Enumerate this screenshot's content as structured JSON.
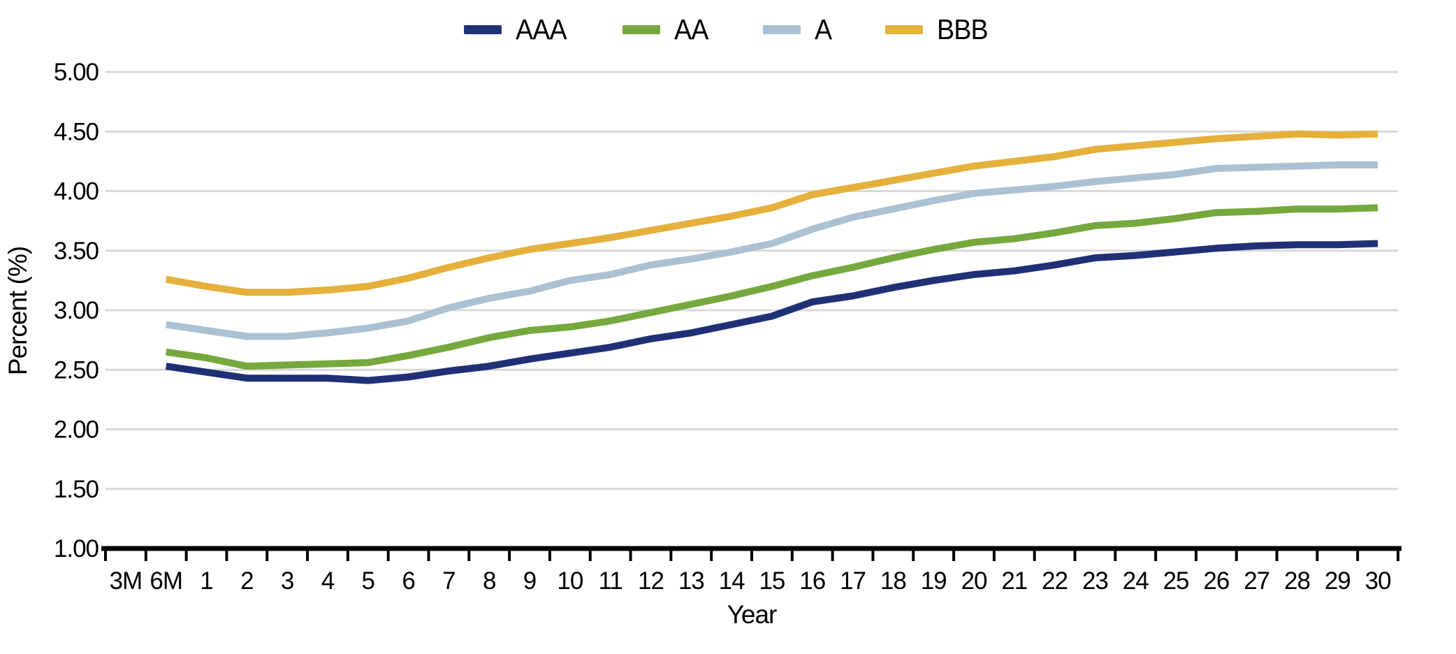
{
  "chart_data": {
    "type": "line",
    "title": "",
    "xlabel": "Year",
    "ylabel": "Percent (%)",
    "ylim": [
      1.0,
      5.0
    ],
    "ytick_labels": [
      "5.00",
      "4.50",
      "4.00",
      "3.50",
      "3.00",
      "2.50",
      "2.00",
      "1.50",
      "1.00"
    ],
    "grid": "horizontal",
    "legend_position": "top-center",
    "categories": [
      "3M",
      "6M",
      "1",
      "2",
      "3",
      "4",
      "5",
      "6",
      "7",
      "8",
      "9",
      "10",
      "11",
      "12",
      "13",
      "14",
      "15",
      "16",
      "17",
      "18",
      "19",
      "20",
      "21",
      "22",
      "23",
      "24",
      "25",
      "26",
      "27",
      "28",
      "29",
      "30"
    ],
    "series": [
      {
        "name": "AAA",
        "color": "#203077",
        "values": [
          null,
          2.53,
          2.48,
          2.43,
          2.43,
          2.43,
          2.41,
          2.44,
          2.49,
          2.53,
          2.59,
          2.64,
          2.69,
          2.76,
          2.81,
          2.88,
          2.95,
          3.07,
          3.12,
          3.19,
          3.25,
          3.3,
          3.33,
          3.38,
          3.44,
          3.46,
          3.49,
          3.52,
          3.54,
          3.55,
          3.55,
          3.56
        ]
      },
      {
        "name": "AA",
        "color": "#76a83e",
        "values": [
          null,
          2.65,
          2.6,
          2.53,
          2.54,
          2.55,
          2.56,
          2.62,
          2.69,
          2.77,
          2.83,
          2.86,
          2.91,
          2.98,
          3.05,
          3.12,
          3.2,
          3.29,
          3.36,
          3.44,
          3.51,
          3.57,
          3.6,
          3.65,
          3.71,
          3.73,
          3.77,
          3.82,
          3.83,
          3.85,
          3.85,
          3.86
        ]
      },
      {
        "name": "A",
        "color": "#abc1d2",
        "values": [
          null,
          2.88,
          2.83,
          2.78,
          2.78,
          2.81,
          2.85,
          2.91,
          3.02,
          3.1,
          3.16,
          3.25,
          3.3,
          3.38,
          3.43,
          3.49,
          3.56,
          3.68,
          3.78,
          3.85,
          3.92,
          3.98,
          4.01,
          4.04,
          4.08,
          4.11,
          4.14,
          4.19,
          4.2,
          4.21,
          4.22,
          4.22
        ]
      },
      {
        "name": "BBB",
        "color": "#e5b13c",
        "values": [
          null,
          3.26,
          3.2,
          3.15,
          3.15,
          3.17,
          3.2,
          3.27,
          3.36,
          3.44,
          3.51,
          3.56,
          3.61,
          3.67,
          3.73,
          3.79,
          3.86,
          3.97,
          4.03,
          4.09,
          4.15,
          4.21,
          4.25,
          4.29,
          4.35,
          4.38,
          4.41,
          4.44,
          4.46,
          4.48,
          4.47,
          4.48
        ]
      }
    ],
    "colors": {
      "gridline": "#d9d9d9",
      "axis": "#000000"
    }
  }
}
